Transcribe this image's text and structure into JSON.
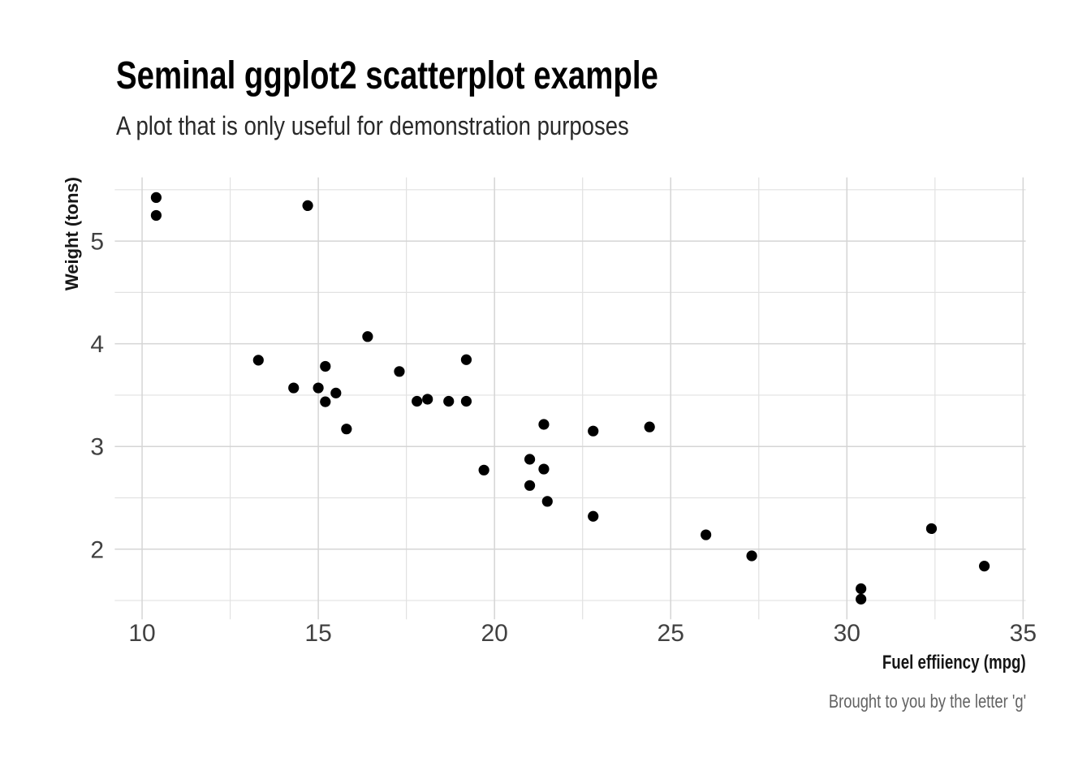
{
  "chart_data": {
    "type": "scatter",
    "title": "Seminal ggplot2 scatterplot example",
    "subtitle": "A plot that is only useful for demonstration purposes",
    "xlabel": "Fuel effiiency (mpg)",
    "ylabel": "Weight (tons)",
    "caption": "Brought to you by the letter 'g'",
    "xlim": [
      9.225,
      35.075
    ],
    "ylim": [
      1.317,
      5.62
    ],
    "x_major_ticks": [
      10,
      15,
      20,
      25,
      30,
      35
    ],
    "x_minor_ticks": [
      12.5,
      17.5,
      22.5,
      27.5,
      32.5
    ],
    "y_major_ticks": [
      2,
      3,
      4,
      5
    ],
    "y_minor_ticks": [
      1.5,
      2.5,
      3.5,
      4.5,
      5.5
    ],
    "grid": "both",
    "legend": "none",
    "point_radius": 6.6,
    "points": [
      [
        21.0,
        2.62
      ],
      [
        21.0,
        2.875
      ],
      [
        22.8,
        2.32
      ],
      [
        21.4,
        3.215
      ],
      [
        18.7,
        3.44
      ],
      [
        18.1,
        3.46
      ],
      [
        14.3,
        3.57
      ],
      [
        24.4,
        3.19
      ],
      [
        22.8,
        3.15
      ],
      [
        19.2,
        3.44
      ],
      [
        17.8,
        3.44
      ],
      [
        16.4,
        4.07
      ],
      [
        17.3,
        3.73
      ],
      [
        15.2,
        3.78
      ],
      [
        10.4,
        5.25
      ],
      [
        10.4,
        5.424
      ],
      [
        14.7,
        5.345
      ],
      [
        32.4,
        2.2
      ],
      [
        30.4,
        1.615
      ],
      [
        33.9,
        1.835
      ],
      [
        21.5,
        2.465
      ],
      [
        15.5,
        3.52
      ],
      [
        15.2,
        3.435
      ],
      [
        13.3,
        3.84
      ],
      [
        19.2,
        3.845
      ],
      [
        27.3,
        1.935
      ],
      [
        26.0,
        2.14
      ],
      [
        30.4,
        1.513
      ],
      [
        15.8,
        3.17
      ],
      [
        19.7,
        2.77
      ],
      [
        15.0,
        3.57
      ],
      [
        21.4,
        2.78
      ]
    ],
    "colors": {
      "background": "#ffffff",
      "point": "#000000",
      "grid_major": "#d5d5d5",
      "grid_minor": "#e2e2e2",
      "tick_label": "#414141",
      "title": "#000000",
      "subtitle": "#2a2a2a",
      "axis_title": "#161616",
      "caption": "#636363"
    }
  }
}
